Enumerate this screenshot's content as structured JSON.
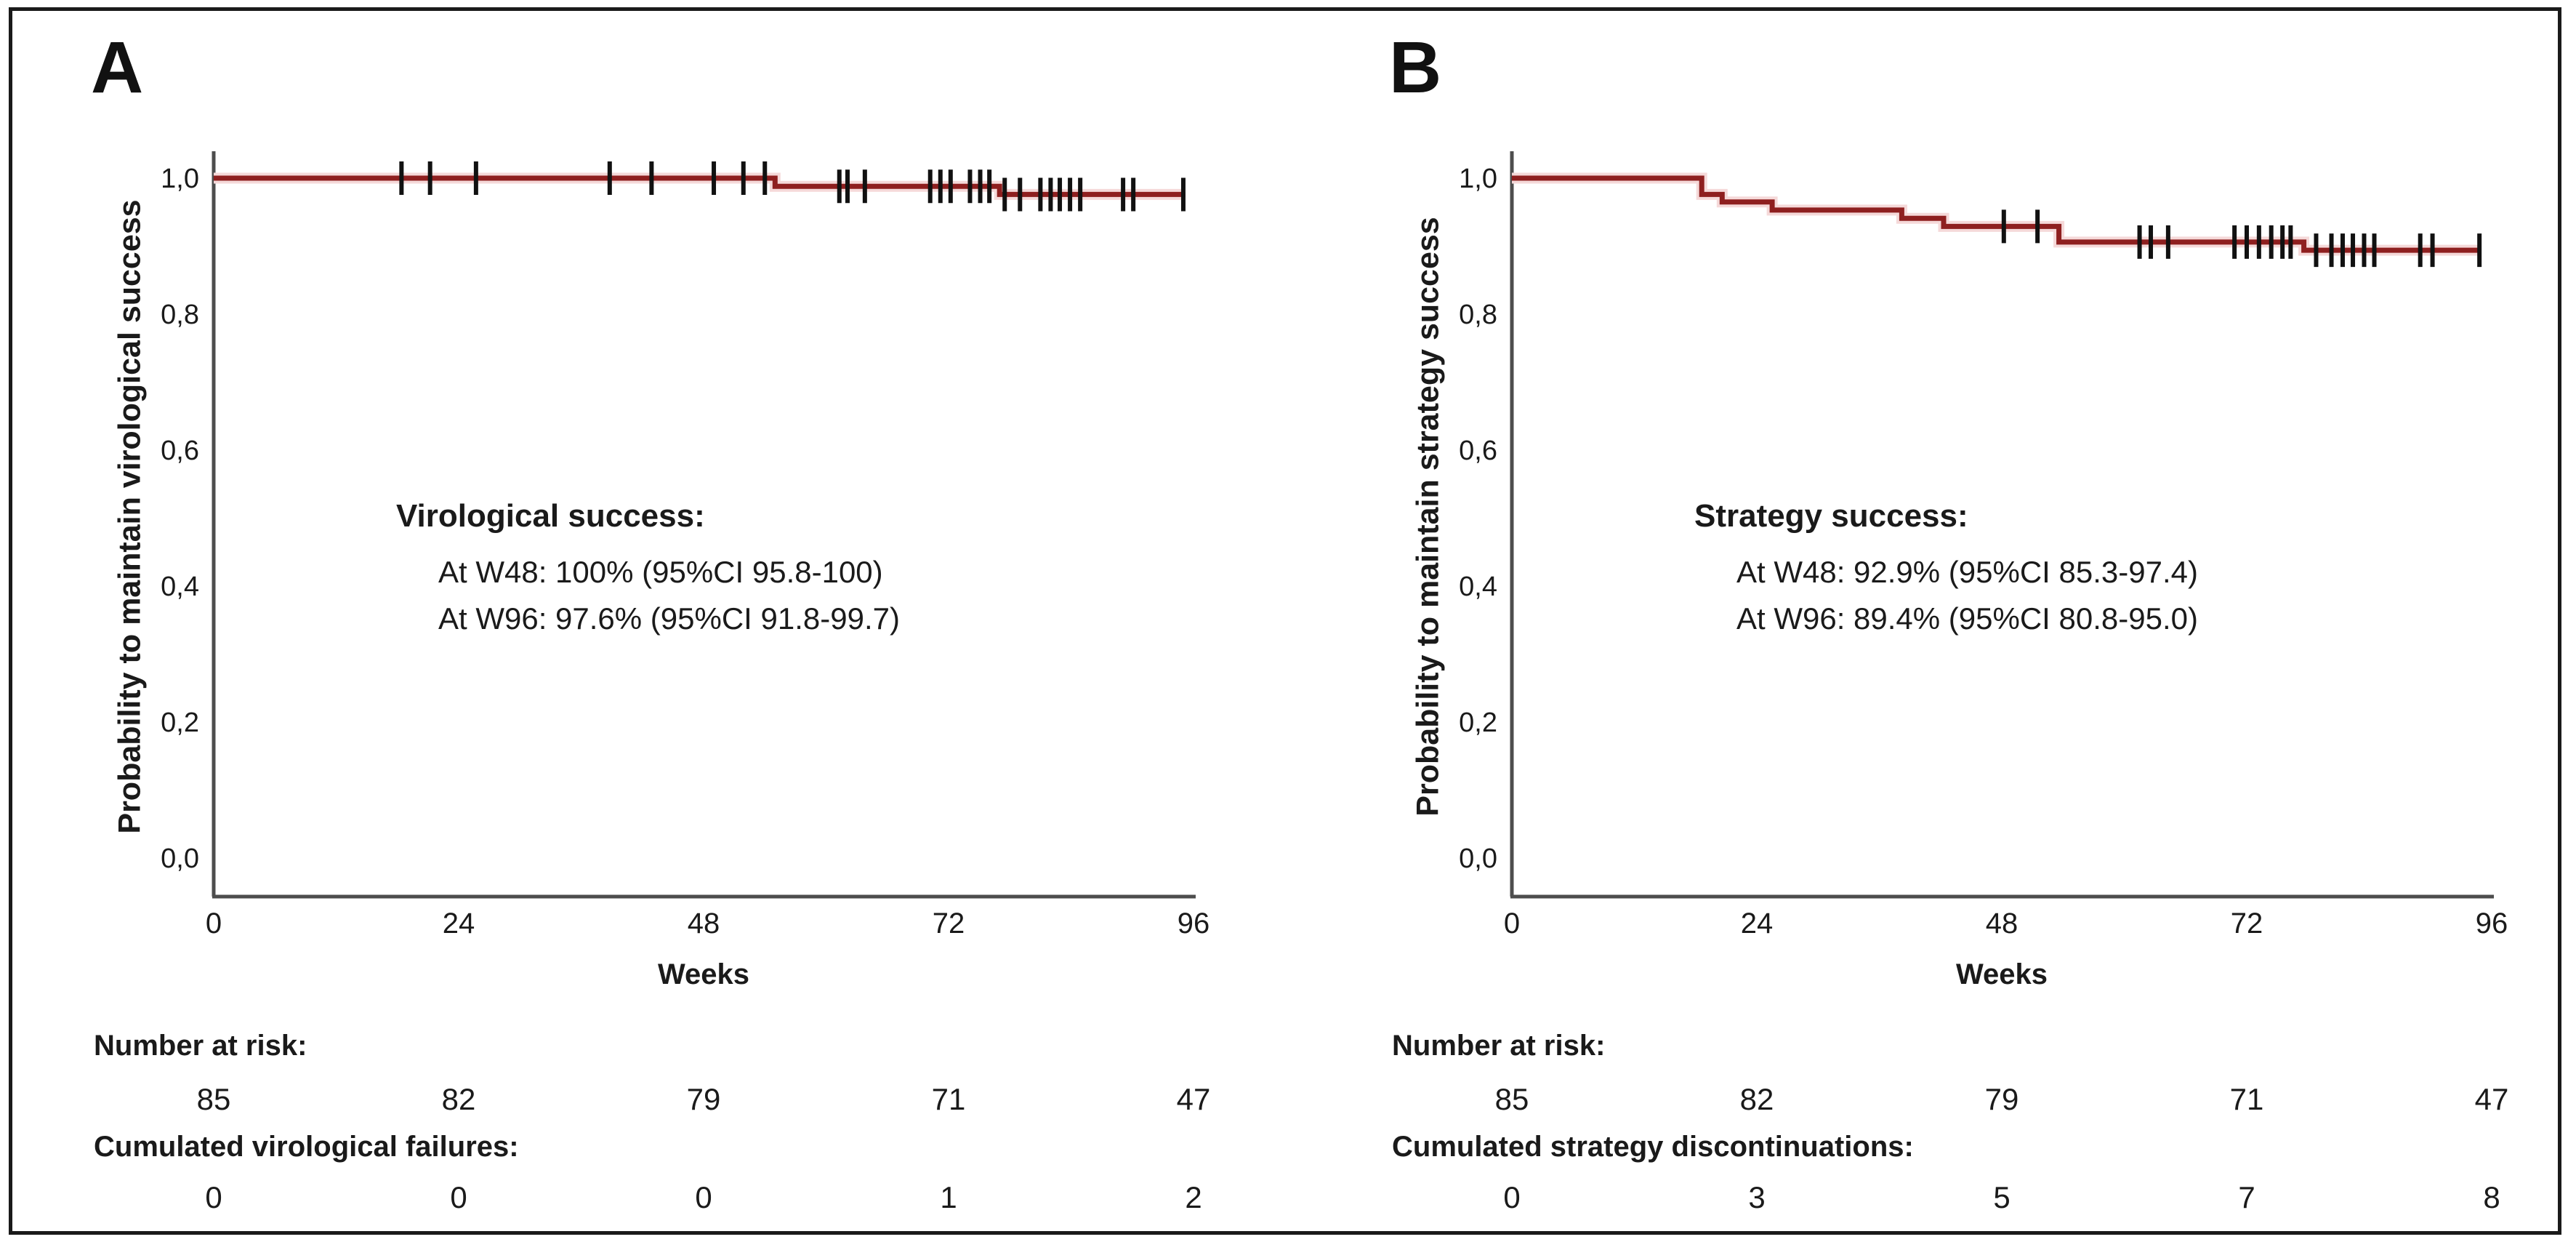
{
  "figure": {
    "background": "#ffffff",
    "border_color": "#1a1a1a",
    "axis_color": "#4d4d4d",
    "censor_color": "#111111",
    "curve_halo_color": "#f5d9d9",
    "text_color": "#1a1a1a"
  },
  "chart_data": [
    {
      "type": "line",
      "subtype": "kaplan-meier-step",
      "panel_label": "A",
      "xlabel": "Weeks",
      "ylabel": "Probability to maintain virological success",
      "xlim": [
        0,
        96
      ],
      "ylim": [
        0.0,
        1.0
      ],
      "x_ticks": [
        0,
        24,
        48,
        72,
        96
      ],
      "y_tick_labels": [
        "1,0",
        "0,8",
        "0,6",
        "0,4",
        "0,2",
        "0,0"
      ],
      "grid": false,
      "legend_position": "none",
      "curve_color": "#8e1f1f",
      "annotation": {
        "title": "Virological success:",
        "lines": [
          "At W48: 100% (95%CI 95.8-100)",
          "At W96: 97.6% (95%CI 91.8-99.7)"
        ]
      },
      "series": [
        {
          "name": "Virological success",
          "steps": [
            [
              0,
              1.0
            ],
            [
              55,
              1.0
            ],
            [
              55,
              0.988
            ],
            [
              77,
              0.988
            ],
            [
              77,
              0.976
            ],
            [
              95.2,
              0.976
            ]
          ],
          "censors": [
            [
              18.4,
              1.0
            ],
            [
              21.2,
              1.0
            ],
            [
              25.7,
              1.0
            ],
            [
              38.8,
              1.0
            ],
            [
              42.9,
              1.0
            ],
            [
              49,
              1.0
            ],
            [
              51.9,
              1.0
            ],
            [
              54,
              1.0
            ],
            [
              61.3,
              0.988
            ],
            [
              62.1,
              0.988
            ],
            [
              63.8,
              0.988
            ],
            [
              70.2,
              0.988
            ],
            [
              71.2,
              0.988
            ],
            [
              72.2,
              0.988
            ],
            [
              74.1,
              0.988
            ],
            [
              75.1,
              0.988
            ],
            [
              76,
              0.988
            ],
            [
              77.5,
              0.976
            ],
            [
              79,
              0.976
            ],
            [
              81,
              0.976
            ],
            [
              82,
              0.976
            ],
            [
              82.9,
              0.976
            ],
            [
              83.9,
              0.976
            ],
            [
              84.9,
              0.976
            ],
            [
              89.1,
              0.976
            ],
            [
              90.1,
              0.976
            ],
            [
              95,
              0.976
            ]
          ]
        }
      ],
      "risk_table": [
        {
          "label": "Number at risk:",
          "values": [
            "85",
            "82",
            "79",
            "71",
            "47"
          ]
        },
        {
          "label": "Cumulated virological failures:",
          "values": [
            "0",
            "0",
            "0",
            "1",
            "2"
          ]
        }
      ]
    },
    {
      "type": "line",
      "subtype": "kaplan-meier-step",
      "panel_label": "B",
      "xlabel": "Weeks",
      "ylabel": "Probability to maintain strategy success",
      "xlim": [
        0,
        96
      ],
      "ylim": [
        0.0,
        1.0
      ],
      "x_ticks": [
        0,
        24,
        48,
        72,
        96
      ],
      "y_tick_labels": [
        "1,0",
        "0,8",
        "0,6",
        "0,4",
        "0,2",
        "0,0"
      ],
      "grid": false,
      "legend_position": "none",
      "curve_color": "#8e1f1f",
      "annotation": {
        "title": "Strategy success:",
        "lines": [
          "At W48: 92.9% (95%CI 85.3-97.4)",
          "At W96: 89.4% (95%CI 80.8-95.0)"
        ]
      },
      "series": [
        {
          "name": "Strategy success",
          "steps": [
            [
              0,
              1.0
            ],
            [
              18.6,
              1.0
            ],
            [
              18.6,
              0.976
            ],
            [
              20.6,
              0.976
            ],
            [
              20.6,
              0.965
            ],
            [
              25.5,
              0.965
            ],
            [
              25.5,
              0.953
            ],
            [
              38.2,
              0.953
            ],
            [
              38.2,
              0.941
            ],
            [
              42.3,
              0.941
            ],
            [
              42.3,
              0.929
            ],
            [
              53.6,
              0.929
            ],
            [
              53.6,
              0.906
            ],
            [
              77.6,
              0.906
            ],
            [
              77.6,
              0.894
            ],
            [
              94.8,
              0.894
            ]
          ],
          "censors": [
            [
              48.2,
              0.929
            ],
            [
              51.5,
              0.929
            ],
            [
              61.5,
              0.906
            ],
            [
              62.6,
              0.906
            ],
            [
              64.3,
              0.906
            ],
            [
              70.8,
              0.906
            ],
            [
              72,
              0.906
            ],
            [
              73.2,
              0.906
            ],
            [
              74.4,
              0.906
            ],
            [
              75.5,
              0.906
            ],
            [
              76.3,
              0.906
            ],
            [
              78.8,
              0.894
            ],
            [
              80.3,
              0.894
            ],
            [
              81.4,
              0.894
            ],
            [
              82.4,
              0.894
            ],
            [
              83.5,
              0.894
            ],
            [
              84.5,
              0.894
            ],
            [
              89,
              0.894
            ],
            [
              90.2,
              0.894
            ],
            [
              94.8,
              0.894
            ]
          ]
        }
      ],
      "risk_table": [
        {
          "label": "Number at risk:",
          "values": [
            "85",
            "82",
            "79",
            "71",
            "47"
          ]
        },
        {
          "label": "Cumulated strategy discontinuations:",
          "values": [
            "0",
            "3",
            "5",
            "7",
            "8"
          ]
        }
      ]
    }
  ]
}
